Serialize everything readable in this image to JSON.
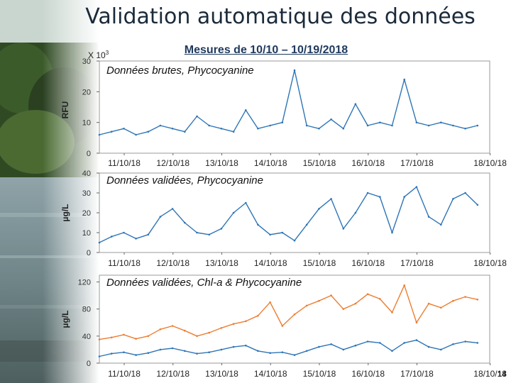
{
  "slide": {
    "title": "Validation automatique des données",
    "subtitle": "Mesures de 10/10 – 10/19/2018",
    "page_number": "14",
    "exponent_base": "X 10",
    "exponent_power": "3"
  },
  "colors": {
    "blue": "#2e75b6",
    "orange": "#ed7d31",
    "title": "#1f3a5f"
  },
  "chart_data": [
    {
      "type": "line",
      "title": "Données brutes, Phycocyanine",
      "ylabel": "RFU",
      "ylim": [
        0,
        30
      ],
      "yticks": [
        "0",
        "10",
        "20",
        "30"
      ],
      "ytick_values": [
        0,
        10,
        20,
        30
      ],
      "xlim": [
        0,
        8
      ],
      "xtick_labels": [
        "11/10/18",
        "12/10/18",
        "13/10/18",
        "14/10/18",
        "15/10/18",
        "16/10/18",
        "17/10/18",
        "18/10/18"
      ],
      "xtick_positions": [
        0,
        1,
        2,
        3,
        4,
        5,
        6,
        7.5
      ],
      "series": [
        {
          "name": "Phycocyanine",
          "color": "#2e75b6",
          "x": [
            0,
            0.25,
            0.5,
            0.75,
            1,
            1.25,
            1.5,
            1.75,
            2,
            2.25,
            2.5,
            2.75,
            3,
            3.25,
            3.5,
            3.75,
            4,
            4.25,
            4.5,
            4.75,
            5,
            5.25,
            5.5,
            5.75,
            6,
            6.25,
            6.5,
            6.75,
            7,
            7.25,
            7.5,
            7.75
          ],
          "values": [
            6,
            7,
            8,
            6,
            7,
            9,
            8,
            7,
            12,
            9,
            8,
            7,
            14,
            8,
            9,
            10,
            27,
            9,
            8,
            11,
            8,
            16,
            9,
            10,
            9,
            24,
            10,
            9,
            10,
            9,
            8,
            9
          ]
        }
      ]
    },
    {
      "type": "line",
      "title": "Données validées, Phycocyanine",
      "ylabel": "µg/L",
      "ylim": [
        0,
        40
      ],
      "yticks": [
        "0",
        "10",
        "20",
        "30",
        "40"
      ],
      "ytick_values": [
        0,
        10,
        20,
        30,
        40
      ],
      "xlim": [
        0,
        8
      ],
      "xtick_labels": [
        "11/10/18",
        "12/10/18",
        "13/10/18",
        "14/10/18",
        "15/10/18",
        "16/10/18",
        "17/10/18",
        "18/10/18"
      ],
      "xtick_positions": [
        0,
        1,
        2,
        3,
        4,
        5,
        6,
        7.5
      ],
      "series": [
        {
          "name": "Phycocyanine",
          "color": "#2e75b6",
          "x": [
            0,
            0.25,
            0.5,
            0.75,
            1,
            1.25,
            1.5,
            1.75,
            2,
            2.25,
            2.5,
            2.75,
            3,
            3.25,
            3.5,
            3.75,
            4,
            4.25,
            4.5,
            4.75,
            5,
            5.25,
            5.5,
            5.75,
            6,
            6.25,
            6.5,
            6.75,
            7,
            7.25,
            7.5,
            7.75
          ],
          "values": [
            5,
            8,
            10,
            7,
            9,
            18,
            22,
            15,
            10,
            9,
            12,
            20,
            25,
            14,
            9,
            10,
            6,
            14,
            22,
            27,
            12,
            20,
            30,
            28,
            10,
            28,
            33,
            18,
            14,
            27,
            30,
            24
          ]
        }
      ]
    },
    {
      "type": "line",
      "title": "Données validées, Chl-a & Phycocyanine",
      "ylabel": "µg/L",
      "ylim": [
        0,
        130
      ],
      "yticks": [
        "0",
        "40",
        "80",
        "120"
      ],
      "ytick_values": [
        0,
        40,
        80,
        120
      ],
      "xlim": [
        0,
        8
      ],
      "xtick_labels": [
        "11/10/18",
        "12/10/18",
        "13/10/18",
        "14/10/18",
        "15/10/18",
        "16/10/18",
        "17/10/18",
        "18/10/18"
      ],
      "xtick_positions": [
        0,
        1,
        2,
        3,
        4,
        5,
        6,
        7.5
      ],
      "series": [
        {
          "name": "Chl-a",
          "color": "#ed7d31",
          "x": [
            0,
            0.25,
            0.5,
            0.75,
            1,
            1.25,
            1.5,
            1.75,
            2,
            2.25,
            2.5,
            2.75,
            3,
            3.25,
            3.5,
            3.75,
            4,
            4.25,
            4.5,
            4.75,
            5,
            5.25,
            5.5,
            5.75,
            6,
            6.25,
            6.5,
            6.75,
            7,
            7.25,
            7.5,
            7.75
          ],
          "values": [
            35,
            38,
            42,
            36,
            40,
            50,
            55,
            48,
            40,
            45,
            52,
            58,
            62,
            70,
            90,
            55,
            72,
            85,
            92,
            100,
            80,
            88,
            102,
            95,
            75,
            115,
            60,
            88,
            82,
            92,
            98,
            94
          ]
        },
        {
          "name": "Phycocyanine",
          "color": "#2e75b6",
          "x": [
            0,
            0.25,
            0.5,
            0.75,
            1,
            1.25,
            1.5,
            1.75,
            2,
            2.25,
            2.5,
            2.75,
            3,
            3.25,
            3.5,
            3.75,
            4,
            4.25,
            4.5,
            4.75,
            5,
            5.25,
            5.5,
            5.75,
            6,
            6.25,
            6.5,
            6.75,
            7,
            7.25,
            7.5,
            7.75
          ],
          "values": [
            10,
            14,
            16,
            12,
            15,
            20,
            22,
            18,
            14,
            16,
            20,
            24,
            26,
            18,
            15,
            16,
            12,
            18,
            24,
            28,
            20,
            26,
            32,
            30,
            18,
            30,
            34,
            24,
            20,
            28,
            32,
            30
          ]
        }
      ]
    }
  ]
}
